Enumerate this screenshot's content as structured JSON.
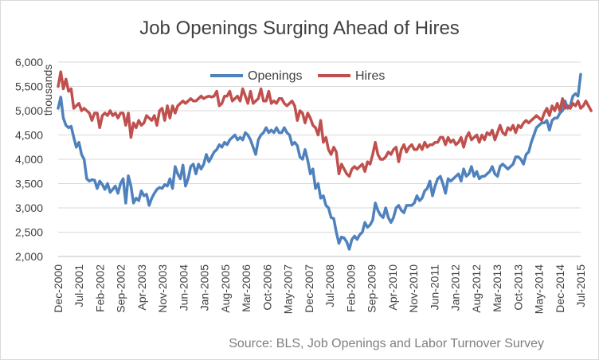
{
  "chart_data": {
    "type": "line",
    "title": "Job Openings Surging Ahead of Hires",
    "ylabel": "thousands",
    "xlabel": "",
    "ylim": [
      2000,
      6000
    ],
    "yticks": [
      2000,
      2500,
      3000,
      3500,
      4000,
      4500,
      5000,
      5500,
      6000
    ],
    "ytick_labels": [
      "2,000",
      "2,500",
      "3,000",
      "3,500",
      "4,000",
      "4,500",
      "5,000",
      "5,500",
      "6,000"
    ],
    "x_start": "Dec-2000",
    "x_end": "Jul-2015",
    "x_tick_labels": [
      "Dec-2000",
      "Jul-2001",
      "Feb-2002",
      "Sep-2002",
      "Apr-2003",
      "Nov-2003",
      "Jun-2004",
      "Jan-2005",
      "Aug-2005",
      "Mar-2006",
      "Oct-2006",
      "May-2007",
      "Dec-2007",
      "Jul-2008",
      "Feb-2009",
      "Sep-2009",
      "Apr-2010",
      "Nov-2010",
      "Jun-2011",
      "Jan-2012",
      "Aug-2012",
      "Mar-2013",
      "Oct-2013",
      "May-2014",
      "Dec-2014",
      "Jul-2015"
    ],
    "legend_position": "top",
    "series": [
      {
        "name": "Openings",
        "color": "#4f81bd",
        "values": [
          5050,
          5280,
          4850,
          4700,
          4650,
          4680,
          4450,
          4250,
          4350,
          4100,
          4000,
          3600,
          3550,
          3580,
          3570,
          3400,
          3550,
          3480,
          3380,
          3500,
          3320,
          3380,
          3450,
          3300,
          3500,
          3600,
          3100,
          3660,
          3450,
          3100,
          3200,
          3150,
          3350,
          3250,
          3280,
          3050,
          3200,
          3300,
          3380,
          3420,
          3400,
          3480,
          3450,
          3600,
          3400,
          3850,
          3700,
          3600,
          3880,
          3450,
          3600,
          3850,
          3900,
          3700,
          3900,
          3800,
          3900,
          4100,
          3950,
          4050,
          4150,
          4200,
          4300,
          4250,
          4350,
          4300,
          4400,
          4450,
          4500,
          4400,
          4450,
          4400,
          4550,
          4500,
          4400,
          4250,
          4100,
          4400,
          4500,
          4550,
          4650,
          4550,
          4600,
          4550,
          4650,
          4550,
          4550,
          4650,
          4550,
          4500,
          4300,
          4350,
          4280,
          4050,
          4000,
          4200,
          3980,
          3700,
          3800,
          3400,
          3500,
          3200,
          3250,
          3050,
          3000,
          2800,
          2780,
          2500,
          2270,
          2400,
          2380,
          2300,
          2150,
          2350,
          2420,
          2350,
          2450,
          2500,
          2700,
          2600,
          2650,
          2750,
          3100,
          2950,
          2850,
          2800,
          3000,
          2800,
          2700,
          2800,
          3000,
          3050,
          2950,
          2900,
          3050,
          3050,
          3050,
          3100,
          3250,
          3150,
          3200,
          3350,
          3400,
          3550,
          3250,
          3450,
          3600,
          3650,
          3500,
          3300,
          3600,
          3550,
          3600,
          3650,
          3700,
          3550,
          3800,
          3650,
          3700,
          3850,
          3650,
          3750,
          3600,
          3650,
          3650,
          3700,
          3750,
          3850,
          3700,
          3650,
          3850,
          3900,
          3850,
          3800,
          3850,
          3900,
          4050,
          4050,
          4000,
          3900,
          4100,
          4150,
          4350,
          4500,
          4650,
          4700,
          4750,
          4750,
          4800,
          4600,
          4800,
          4850,
          4850,
          4950,
          5000,
          5200,
          5050,
          5100,
          5300,
          5350,
          5300,
          5750
        ]
      },
      {
        "name": "Hires",
        "color": "#c0504d",
        "values": [
          5500,
          5800,
          5450,
          5650,
          5400,
          5450,
          5050,
          5100,
          5150,
          5000,
          5050,
          5000,
          4950,
          4800,
          4950,
          4950,
          4650,
          4900,
          4950,
          4900,
          5000,
          4900,
          4950,
          4850,
          4950,
          4950,
          4700,
          4950,
          4450,
          4750,
          4650,
          4800,
          4700,
          4750,
          4900,
          4850,
          4800,
          4900,
          4700,
          5000,
          5050,
          4800,
          5100,
          4850,
          5100,
          4950,
          5100,
          5150,
          5200,
          5150,
          5200,
          5250,
          5200,
          5200,
          5250,
          5300,
          5250,
          5280,
          5300,
          5280,
          5300,
          5400,
          5100,
          5150,
          5300,
          5300,
          5400,
          5200,
          5250,
          5300,
          5200,
          5450,
          5300,
          5150,
          5400,
          5150,
          5200,
          5250,
          5450,
          5200,
          5200,
          5400,
          5150,
          5200,
          5150,
          5250,
          5250,
          5150,
          5100,
          5150,
          5200,
          5100,
          4800,
          5000,
          4950,
          4750,
          4950,
          4850,
          4700,
          4650,
          4500,
          4800,
          4350,
          4450,
          4200,
          4100,
          4250,
          4150,
          3700,
          3900,
          3800,
          3700,
          3650,
          3800,
          3850,
          3800,
          3850,
          3900,
          3750,
          3950,
          3900,
          4100,
          4350,
          4100,
          4000,
          4000,
          4050,
          4150,
          4100,
          4200,
          4250,
          3950,
          4200,
          4300,
          4150,
          4250,
          4300,
          4200,
          4200,
          4300,
          4200,
          4350,
          4250,
          4300,
          4300,
          4350,
          4350,
          4450,
          4450,
          4300,
          4450,
          4350,
          4400,
          4300,
          4350,
          4450,
          4250,
          4450,
          4550,
          4400,
          4450,
          4500,
          4350,
          4500,
          4400,
          4550,
          4500,
          4600,
          4400,
          4550,
          4700,
          4550,
          4500,
          4650,
          4600,
          4700,
          4550,
          4700,
          4650,
          4750,
          4800,
          4750,
          4800,
          4850,
          4900,
          4850,
          4800,
          4950,
          5050,
          4900,
          5100,
          5000,
          5150,
          5000,
          5250,
          5050,
          5100,
          5050,
          5150,
          5100,
          5200,
          5050,
          5100,
          5200,
          5100,
          5000
        ]
      }
    ],
    "source": "Source: BLS, Job Openings and Labor Turnover Survey"
  }
}
